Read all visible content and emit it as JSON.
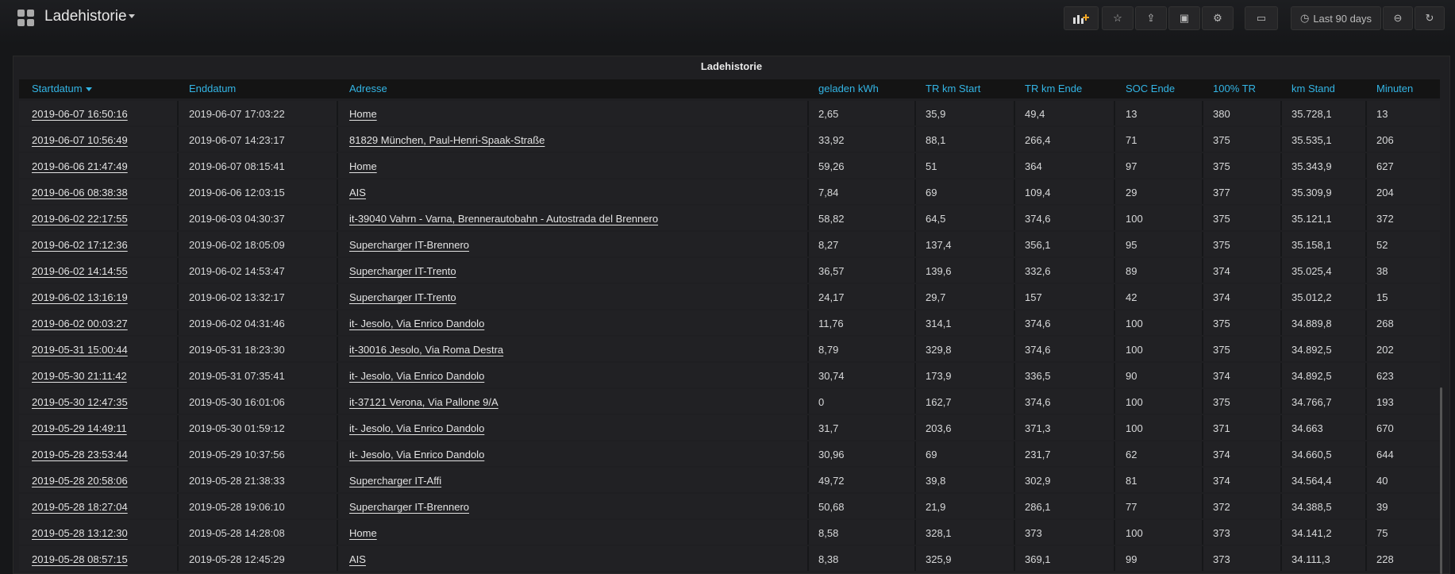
{
  "header": {
    "title": "Ladehistorie",
    "time_range": "Last 90 days"
  },
  "panel": {
    "title": "Ladehistorie"
  },
  "table": {
    "columns": [
      "Startdatum",
      "Enddatum",
      "Adresse",
      "geladen kWh",
      "TR km Start",
      "TR km Ende",
      "SOC Ende",
      "100% TR",
      "km Stand",
      "Minuten"
    ],
    "rows": [
      [
        "2019-06-07 16:50:16",
        "2019-06-07 17:03:22",
        "Home",
        "2,65",
        "35,9",
        "49,4",
        "13",
        "380",
        "35.728,1",
        "13"
      ],
      [
        "2019-06-07 10:56:49",
        "2019-06-07 14:23:17",
        "81829 München, Paul-Henri-Spaak-Straße",
        "33,92",
        "88,1",
        "266,4",
        "71",
        "375",
        "35.535,1",
        "206"
      ],
      [
        "2019-06-06 21:47:49",
        "2019-06-07 08:15:41",
        "Home",
        "59,26",
        "51",
        "364",
        "97",
        "375",
        "35.343,9",
        "627"
      ],
      [
        "2019-06-06 08:38:38",
        "2019-06-06 12:03:15",
        "AIS",
        "7,84",
        "69",
        "109,4",
        "29",
        "377",
        "35.309,9",
        "204"
      ],
      [
        "2019-06-02 22:17:55",
        "2019-06-03 04:30:37",
        "it-39040 Vahrn - Varna, Brennerautobahn - Autostrada del Brennero",
        "58,82",
        "64,5",
        "374,6",
        "100",
        "375",
        "35.121,1",
        "372"
      ],
      [
        "2019-06-02 17:12:36",
        "2019-06-02 18:05:09",
        "Supercharger IT-Brennero",
        "8,27",
        "137,4",
        "356,1",
        "95",
        "375",
        "35.158,1",
        "52"
      ],
      [
        "2019-06-02 14:14:55",
        "2019-06-02 14:53:47",
        "Supercharger IT-Trento",
        "36,57",
        "139,6",
        "332,6",
        "89",
        "374",
        "35.025,4",
        "38"
      ],
      [
        "2019-06-02 13:16:19",
        "2019-06-02 13:32:17",
        "Supercharger IT-Trento",
        "24,17",
        "29,7",
        "157",
        "42",
        "374",
        "35.012,2",
        "15"
      ],
      [
        "2019-06-02 00:03:27",
        "2019-06-02 04:31:46",
        "it- Jesolo, Via Enrico Dandolo",
        "11,76",
        "314,1",
        "374,6",
        "100",
        "375",
        "34.889,8",
        "268"
      ],
      [
        "2019-05-31 15:00:44",
        "2019-05-31 18:23:30",
        "it-30016 Jesolo, Via Roma Destra",
        "8,79",
        "329,8",
        "374,6",
        "100",
        "375",
        "34.892,5",
        "202"
      ],
      [
        "2019-05-30 21:11:42",
        "2019-05-31 07:35:41",
        "it- Jesolo, Via Enrico Dandolo",
        "30,74",
        "173,9",
        "336,5",
        "90",
        "374",
        "34.892,5",
        "623"
      ],
      [
        "2019-05-30 12:47:35",
        "2019-05-30 16:01:06",
        "it-37121 Verona, Via Pallone 9/A",
        "0",
        "162,7",
        "374,6",
        "100",
        "375",
        "34.766,7",
        "193"
      ],
      [
        "2019-05-29 14:49:11",
        "2019-05-30 01:59:12",
        "it- Jesolo, Via Enrico Dandolo",
        "31,7",
        "203,6",
        "371,3",
        "100",
        "371",
        "34.663",
        "670"
      ],
      [
        "2019-05-28 23:53:44",
        "2019-05-29 10:37:56",
        "it- Jesolo, Via Enrico Dandolo",
        "30,96",
        "69",
        "231,7",
        "62",
        "374",
        "34.660,5",
        "644"
      ],
      [
        "2019-05-28 20:58:06",
        "2019-05-28 21:38:33",
        "Supercharger IT-Affi",
        "49,72",
        "39,8",
        "302,9",
        "81",
        "374",
        "34.564,4",
        "40"
      ],
      [
        "2019-05-28 18:27:04",
        "2019-05-28 19:06:10",
        "Supercharger IT-Brennero",
        "50,68",
        "21,9",
        "286,1",
        "77",
        "372",
        "34.388,5",
        "39"
      ],
      [
        "2019-05-28 13:12:30",
        "2019-05-28 14:28:08",
        "Home",
        "8,58",
        "328,1",
        "373",
        "100",
        "373",
        "34.141,2",
        "75"
      ],
      [
        "2019-05-28 08:57:15",
        "2019-05-28 12:45:29",
        "AIS",
        "8,38",
        "325,9",
        "369,1",
        "99",
        "373",
        "34.111,3",
        "228"
      ]
    ]
  }
}
